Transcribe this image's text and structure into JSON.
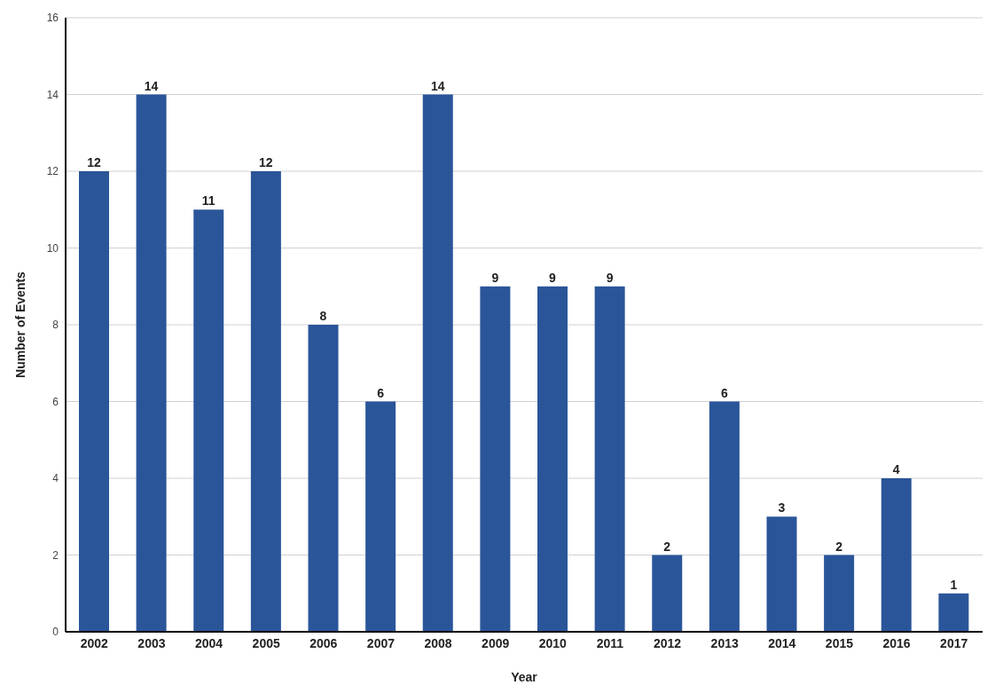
{
  "chart_data": {
    "type": "bar",
    "xlabel": "Year",
    "ylabel": "Number of Events",
    "categories": [
      "2002",
      "2003",
      "2004",
      "2005",
      "2006",
      "2007",
      "2008",
      "2009",
      "2010",
      "2011",
      "2012",
      "2013",
      "2014",
      "2015",
      "2016",
      "2017"
    ],
    "values": [
      12,
      14,
      11,
      12,
      8,
      6,
      14,
      9,
      9,
      9,
      2,
      6,
      3,
      2,
      4,
      1
    ],
    "color": "#2a5599",
    "ylim": [
      0,
      16
    ],
    "yticks": [
      0,
      2,
      4,
      6,
      8,
      10,
      12,
      14,
      16
    ],
    "grid": "y",
    "data_labels": true
  }
}
